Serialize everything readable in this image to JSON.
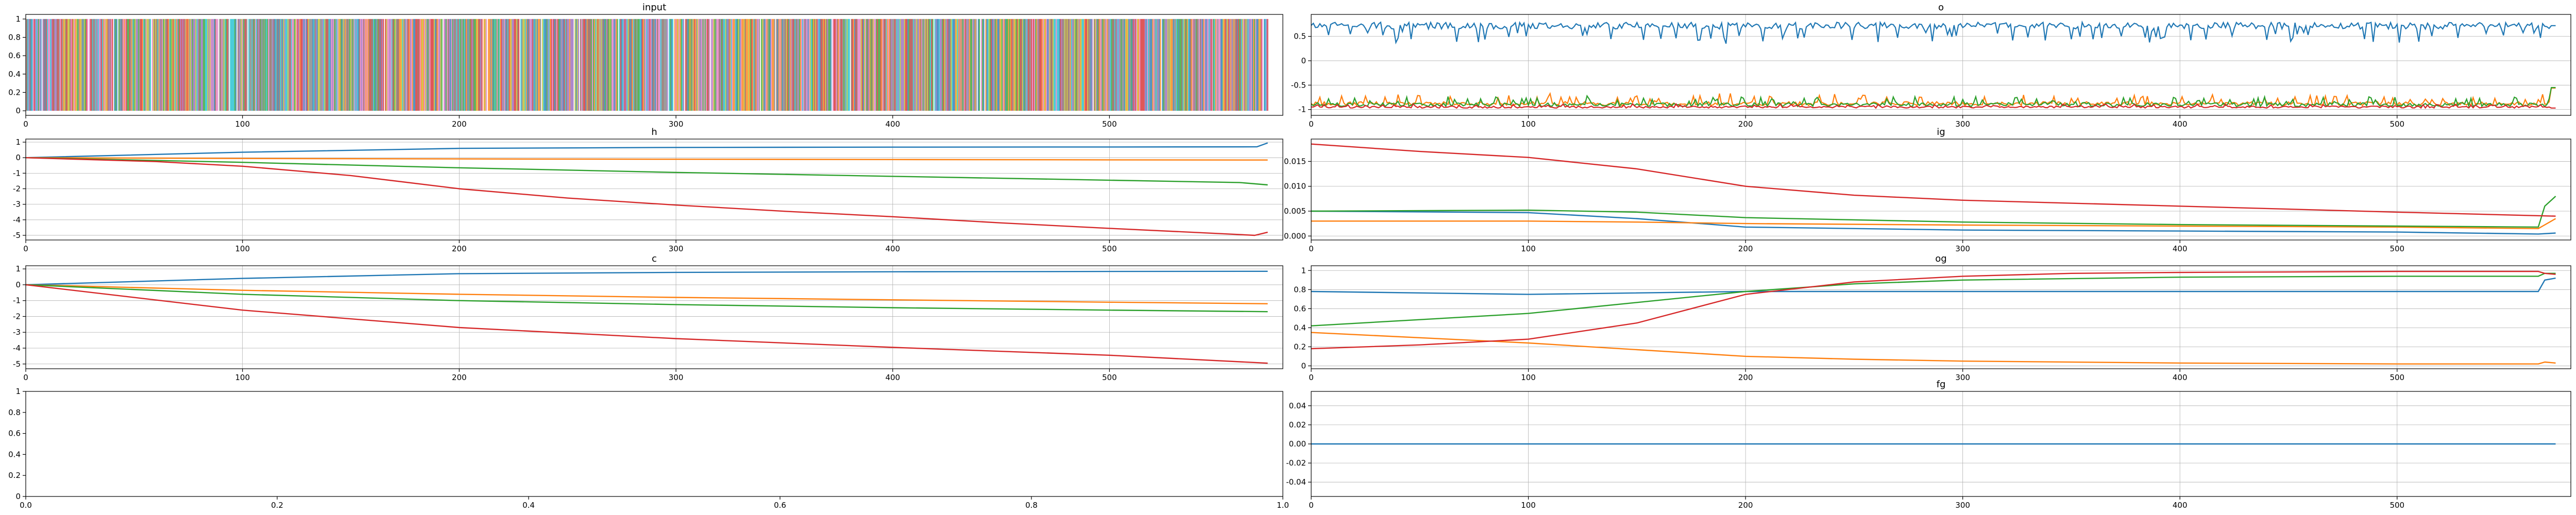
{
  "chart_data": [
    {
      "id": "input",
      "title": "input",
      "type": "line",
      "grid": false,
      "xlim": [
        0,
        580
      ],
      "ylim": [
        -0.05,
        1.05
      ],
      "xticks": [
        0,
        100,
        200,
        300,
        400,
        500
      ],
      "yticks": [
        0.0,
        0.2,
        0.4,
        0.6,
        0.8,
        1.0
      ],
      "x_max": 573,
      "series": [],
      "note_series": "dense one-hot colored vertical lines across all timesteps"
    },
    {
      "id": "o",
      "title": "o",
      "type": "line",
      "grid": true,
      "xlim": [
        0,
        580
      ],
      "ylim": [
        -1.12,
        0.95
      ],
      "xticks": [
        0,
        100,
        200,
        300,
        400,
        500
      ],
      "yticks": [
        -1.0,
        -0.5,
        0.0,
        0.5
      ],
      "x_max": 573,
      "series": [
        {
          "color": "#1f77b4",
          "base": 0.72,
          "noise": 0.07,
          "dips": 0.32,
          "end": 0.72
        },
        {
          "color": "#ff7f0e",
          "base": -0.88,
          "noise": 0.04,
          "dips": 0.18,
          "end": -0.56
        },
        {
          "color": "#2ca02c",
          "base": -0.9,
          "noise": 0.04,
          "dips": 0.15,
          "end": -0.55
        },
        {
          "color": "#d62728",
          "base": -0.95,
          "noise": 0.02,
          "dips": 0.05,
          "end": -0.97
        }
      ]
    },
    {
      "id": "h",
      "title": "h",
      "type": "line",
      "grid": true,
      "xlim": [
        0,
        580
      ],
      "ylim": [
        -5.3,
        1.2
      ],
      "xticks": [
        0,
        100,
        200,
        300,
        400,
        500
      ],
      "yticks": [
        -5,
        -4,
        -3,
        -2,
        -1,
        0,
        1
      ],
      "x_max": 573,
      "series": [
        {
          "color": "#1f77b4",
          "points": [
            [
              0,
              0
            ],
            [
              100,
              0.35
            ],
            [
              200,
              0.6
            ],
            [
              300,
              0.66
            ],
            [
              400,
              0.68
            ],
            [
              500,
              0.69
            ],
            [
              568,
              0.7
            ],
            [
              573,
              0.95
            ]
          ]
        },
        {
          "color": "#ff7f0e",
          "points": [
            [
              0,
              0
            ],
            [
              100,
              -0.05
            ],
            [
              200,
              -0.08
            ],
            [
              300,
              -0.1
            ],
            [
              400,
              -0.12
            ],
            [
              500,
              -0.14
            ],
            [
              573,
              -0.15
            ]
          ]
        },
        {
          "color": "#2ca02c",
          "points": [
            [
              0,
              0
            ],
            [
              100,
              -0.3
            ],
            [
              200,
              -0.65
            ],
            [
              300,
              -0.95
            ],
            [
              400,
              -1.2
            ],
            [
              500,
              -1.45
            ],
            [
              560,
              -1.6
            ],
            [
              573,
              -1.75
            ]
          ]
        },
        {
          "color": "#d62728",
          "points": [
            [
              0,
              0
            ],
            [
              60,
              -0.25
            ],
            [
              100,
              -0.55
            ],
            [
              150,
              -1.15
            ],
            [
              200,
              -2.0
            ],
            [
              250,
              -2.6
            ],
            [
              300,
              -3.05
            ],
            [
              350,
              -3.45
            ],
            [
              400,
              -3.8
            ],
            [
              450,
              -4.2
            ],
            [
              500,
              -4.55
            ],
            [
              560,
              -4.95
            ],
            [
              567,
              -5.0
            ],
            [
              573,
              -4.8
            ]
          ]
        }
      ]
    },
    {
      "id": "ig",
      "title": "ig",
      "type": "line",
      "grid": true,
      "xlim": [
        0,
        580
      ],
      "ylim": [
        -0.0008,
        0.0195
      ],
      "xticks": [
        0,
        100,
        200,
        300,
        400,
        500
      ],
      "yticks": [
        0.0,
        0.005,
        0.01,
        0.015
      ],
      "ytick_labels": [
        "0.000",
        "0.005",
        "0.010",
        "0.015"
      ],
      "x_max": 573,
      "series": [
        {
          "color": "#1f77b4",
          "points": [
            [
              0,
              0.005
            ],
            [
              100,
              0.0047
            ],
            [
              150,
              0.0035
            ],
            [
              200,
              0.0018
            ],
            [
              300,
              0.0012
            ],
            [
              400,
              0.001
            ],
            [
              500,
              0.0008
            ],
            [
              565,
              0.0004
            ],
            [
              573,
              0.0006
            ]
          ]
        },
        {
          "color": "#ff7f0e",
          "points": [
            [
              0,
              0.003
            ],
            [
              100,
              0.003
            ],
            [
              150,
              0.0028
            ],
            [
              200,
              0.0025
            ],
            [
              300,
              0.0022
            ],
            [
              400,
              0.002
            ],
            [
              500,
              0.0018
            ],
            [
              565,
              0.0015
            ],
            [
              567,
              0.002
            ],
            [
              573,
              0.0035
            ]
          ]
        },
        {
          "color": "#2ca02c",
          "points": [
            [
              0,
              0.005
            ],
            [
              100,
              0.0052
            ],
            [
              150,
              0.0048
            ],
            [
              200,
              0.0037
            ],
            [
              300,
              0.0028
            ],
            [
              400,
              0.0023
            ],
            [
              500,
              0.002
            ],
            [
              565,
              0.0018
            ],
            [
              568,
              0.006
            ],
            [
              573,
              0.008
            ]
          ]
        },
        {
          "color": "#d62728",
          "points": [
            [
              0,
              0.0185
            ],
            [
              50,
              0.017
            ],
            [
              100,
              0.0158
            ],
            [
              150,
              0.0135
            ],
            [
              200,
              0.01
            ],
            [
              250,
              0.0082
            ],
            [
              300,
              0.0072
            ],
            [
              400,
              0.006
            ],
            [
              500,
              0.0048
            ],
            [
              573,
              0.004
            ]
          ]
        }
      ]
    },
    {
      "id": "c",
      "title": "c",
      "type": "line",
      "grid": true,
      "xlim": [
        0,
        580
      ],
      "ylim": [
        -5.3,
        1.2
      ],
      "xticks": [
        0,
        100,
        200,
        300,
        400,
        500
      ],
      "yticks": [
        -5,
        -4,
        -3,
        -2,
        -1,
        0,
        1
      ],
      "x_max": 573,
      "series": [
        {
          "color": "#1f77b4",
          "points": [
            [
              0,
              0
            ],
            [
              100,
              0.4
            ],
            [
              200,
              0.7
            ],
            [
              300,
              0.78
            ],
            [
              400,
              0.82
            ],
            [
              500,
              0.84
            ],
            [
              573,
              0.85
            ]
          ]
        },
        {
          "color": "#ff7f0e",
          "points": [
            [
              0,
              0
            ],
            [
              100,
              -0.35
            ],
            [
              200,
              -0.6
            ],
            [
              300,
              -0.8
            ],
            [
              400,
              -0.95
            ],
            [
              500,
              -1.1
            ],
            [
              573,
              -1.2
            ]
          ]
        },
        {
          "color": "#2ca02c",
          "points": [
            [
              0,
              0
            ],
            [
              100,
              -0.6
            ],
            [
              200,
              -1.0
            ],
            [
              300,
              -1.25
            ],
            [
              400,
              -1.45
            ],
            [
              500,
              -1.6
            ],
            [
              573,
              -1.7
            ]
          ]
        },
        {
          "color": "#d62728",
          "points": [
            [
              0,
              0
            ],
            [
              100,
              -1.6
            ],
            [
              200,
              -2.7
            ],
            [
              300,
              -3.4
            ],
            [
              400,
              -3.95
            ],
            [
              500,
              -4.45
            ],
            [
              573,
              -4.95
            ]
          ]
        }
      ]
    },
    {
      "id": "og",
      "title": "og",
      "type": "line",
      "grid": true,
      "xlim": [
        0,
        580
      ],
      "ylim": [
        -0.03,
        1.05
      ],
      "xticks": [
        0,
        100,
        200,
        300,
        400,
        500
      ],
      "yticks": [
        0.0,
        0.2,
        0.4,
        0.6,
        0.8,
        1.0
      ],
      "x_max": 573,
      "series": [
        {
          "color": "#1f77b4",
          "points": [
            [
              0,
              0.78
            ],
            [
              100,
              0.75
            ],
            [
              200,
              0.78
            ],
            [
              300,
              0.78
            ],
            [
              400,
              0.78
            ],
            [
              500,
              0.78
            ],
            [
              565,
              0.78
            ],
            [
              568,
              0.9
            ],
            [
              573,
              0.92
            ]
          ]
        },
        {
          "color": "#ff7f0e",
          "points": [
            [
              0,
              0.35
            ],
            [
              100,
              0.24
            ],
            [
              150,
              0.17
            ],
            [
              200,
              0.1
            ],
            [
              250,
              0.07
            ],
            [
              300,
              0.05
            ],
            [
              400,
              0.03
            ],
            [
              500,
              0.02
            ],
            [
              565,
              0.02
            ],
            [
              568,
              0.04
            ],
            [
              573,
              0.03
            ]
          ]
        },
        {
          "color": "#2ca02c",
          "points": [
            [
              0,
              0.42
            ],
            [
              100,
              0.55
            ],
            [
              200,
              0.78
            ],
            [
              250,
              0.86
            ],
            [
              300,
              0.9
            ],
            [
              400,
              0.93
            ],
            [
              500,
              0.94
            ],
            [
              565,
              0.94
            ],
            [
              568,
              0.97
            ],
            [
              573,
              0.97
            ]
          ]
        },
        {
          "color": "#d62728",
          "points": [
            [
              0,
              0.18
            ],
            [
              50,
              0.22
            ],
            [
              100,
              0.28
            ],
            [
              150,
              0.45
            ],
            [
              200,
              0.75
            ],
            [
              250,
              0.88
            ],
            [
              300,
              0.94
            ],
            [
              350,
              0.97
            ],
            [
              400,
              0.98
            ],
            [
              500,
              0.99
            ],
            [
              565,
              0.99
            ],
            [
              568,
              0.97
            ],
            [
              573,
              0.96
            ]
          ]
        }
      ]
    },
    {
      "id": "empty",
      "title": "",
      "type": "line",
      "grid": false,
      "xlim": [
        0,
        1
      ],
      "ylim": [
        0,
        1
      ],
      "xticks": [
        0.0,
        0.2,
        0.4,
        0.6,
        0.8,
        1.0
      ],
      "xtick_labels": [
        "0.0",
        "0.2",
        "0.4",
        "0.6",
        "0.8",
        "1.0"
      ],
      "yticks": [
        0.0,
        0.2,
        0.4,
        0.6,
        0.8,
        1.0
      ],
      "series": []
    },
    {
      "id": "fg",
      "title": "fg",
      "type": "line",
      "grid": true,
      "xlim": [
        0,
        580
      ],
      "ylim": [
        -0.055,
        0.055
      ],
      "xticks": [
        0,
        100,
        200,
        300,
        400,
        500
      ],
      "yticks": [
        -0.04,
        -0.02,
        0.0,
        0.02,
        0.04
      ],
      "ytick_labels": [
        "-0.04",
        "-0.02",
        "0.00",
        "0.02",
        "0.04"
      ],
      "x_max": 573,
      "series": [
        {
          "color": "#1f77b4",
          "points": [
            [
              0,
              0
            ],
            [
              573,
              0
            ]
          ]
        }
      ]
    }
  ],
  "input_palette": [
    "#1f77b4",
    "#ff7f0e",
    "#2ca02c",
    "#d62728",
    "#9467bd",
    "#8c564b",
    "#e377c2",
    "#7f7f7f",
    "#bcbd22",
    "#17becf"
  ]
}
